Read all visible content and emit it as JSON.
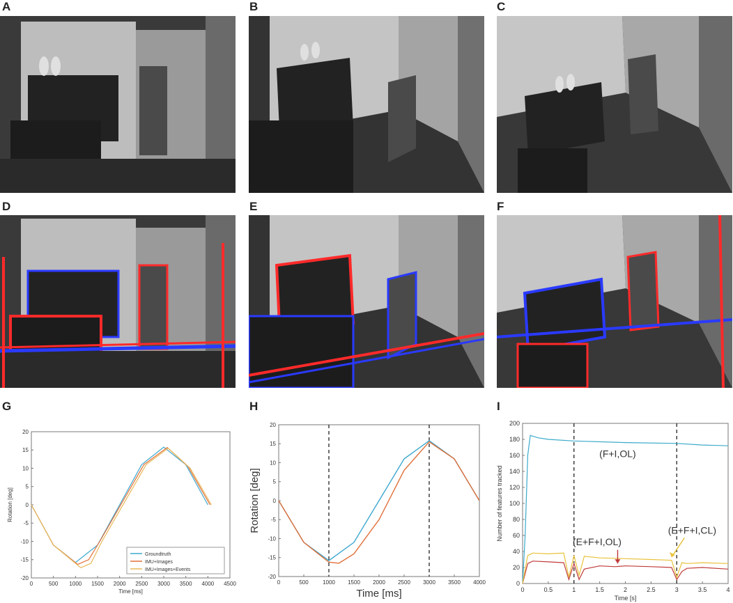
{
  "panel_labels": [
    "A",
    "B",
    "C",
    "D",
    "E",
    "F",
    "G",
    "H",
    "I"
  ],
  "colors": {
    "groundtruth": "#3ea8cf",
    "imu_images": "#e0703a",
    "imu_images_events": "#e8b95a",
    "fi_ol": "#3aaacb",
    "efi_ol": "#c03a3a",
    "efi_cl": "#e8c23a",
    "event_red": "#ff2a2a",
    "event_blue": "#2a3aff"
  },
  "chart_data": [
    {
      "panel": "G",
      "type": "line",
      "xlabel": "Time [ms]",
      "ylabel": "Rotation [deg]",
      "xlim": [
        0,
        4500
      ],
      "ylim": [
        -20,
        20
      ],
      "xticks": [
        0,
        500,
        1000,
        1500,
        2000,
        2500,
        3000,
        3500,
        4000,
        4500
      ],
      "yticks": [
        -20,
        -15,
        -10,
        -5,
        0,
        5,
        10,
        15,
        20
      ],
      "legend_position": "bottom-right",
      "series": [
        {
          "name": "Groundtruth",
          "x": [
            0,
            500,
            1000,
            1500,
            2000,
            2500,
            3000,
            3500,
            4000
          ],
          "y": [
            0,
            -11,
            -15.8,
            -11,
            0,
            11,
            15.8,
            11,
            0
          ]
        },
        {
          "name": "IMU+Images",
          "x": [
            0,
            500,
            1050,
            1300,
            1550,
            2050,
            2550,
            3080,
            3550,
            4050
          ],
          "y": [
            0,
            -11,
            -16.3,
            -15,
            -10,
            0.5,
            11,
            15.7,
            10.5,
            0
          ]
        },
        {
          "name": "IMU+Images+Events",
          "x": [
            0,
            500,
            1120,
            1350,
            1600,
            2100,
            2600,
            3100,
            3600,
            4080
          ],
          "y": [
            0,
            -11,
            -17.2,
            -16,
            -10,
            0.5,
            11,
            15.5,
            10,
            0
          ]
        }
      ]
    },
    {
      "panel": "H",
      "type": "line",
      "xlabel": "Time [ms]",
      "ylabel": "Rotation [deg]",
      "xlim": [
        0,
        4000
      ],
      "ylim": [
        -20,
        20
      ],
      "xticks": [
        0,
        500,
        1000,
        1500,
        2000,
        2500,
        3000,
        3500,
        4000
      ],
      "yticks": [
        -20,
        -15,
        -10,
        -5,
        0,
        5,
        10,
        15,
        20
      ],
      "vlines": [
        1000,
        3000
      ],
      "series": [
        {
          "x": [
            0,
            500,
            1000,
            1500,
            2000,
            2500,
            3000,
            3500,
            4000
          ],
          "y": [
            0,
            -11,
            -15.8,
            -11,
            0,
            11,
            15.8,
            11,
            0
          ]
        },
        {
          "x": [
            0,
            500,
            1000,
            1200,
            1500,
            2000,
            2500,
            3000,
            3500,
            4000
          ],
          "y": [
            0,
            -11,
            -16.2,
            -16.5,
            -14,
            -5,
            8,
            15.5,
            11,
            0
          ]
        }
      ]
    },
    {
      "panel": "I",
      "type": "line",
      "xlabel": "Time [s]",
      "ylabel": "Number of features tracked",
      "xlim": [
        0,
        4
      ],
      "ylim": [
        0,
        200
      ],
      "xticks": [
        0,
        0.5,
        1,
        1.5,
        2,
        2.5,
        3,
        3.5,
        4
      ],
      "xtick_labels": [
        "0",
        "0.5",
        "1",
        "1.5",
        "2",
        "2.5",
        "3",
        "3.5",
        "4"
      ],
      "yticks": [
        0,
        20,
        40,
        60,
        80,
        100,
        120,
        140,
        160,
        180,
        200
      ],
      "vlines": [
        1,
        3
      ],
      "annotations": [
        {
          "text": "(F+I,OL)",
          "x": 1.85,
          "y": 158
        },
        {
          "text": "(E+F+I,OL)",
          "x": 1.45,
          "y": 48
        },
        {
          "text": "(E+F+I,CL)",
          "x": 3.3,
          "y": 62
        }
      ],
      "series": [
        {
          "name": "(F+I,OL)",
          "x": [
            0,
            0.05,
            0.1,
            0.15,
            0.3,
            0.5,
            1,
            2,
            3,
            3.5,
            4
          ],
          "y": [
            0,
            60,
            160,
            185,
            182,
            180,
            178,
            176,
            175,
            173,
            172
          ]
        },
        {
          "name": "(E+F+I,OL)",
          "x": [
            0,
            0.1,
            0.2,
            0.5,
            0.8,
            0.9,
            1.0,
            1.1,
            1.2,
            1.5,
            1.8,
            2.0,
            2.5,
            2.9,
            3.0,
            3.1,
            3.2,
            3.5,
            4
          ],
          "y": [
            0,
            25,
            28,
            27,
            26,
            5,
            25,
            5,
            18,
            22,
            21,
            22,
            21,
            20,
            5,
            15,
            19,
            20,
            18
          ]
        },
        {
          "name": "(E+F+I,CL)",
          "x": [
            0,
            0.1,
            0.2,
            0.5,
            0.8,
            0.9,
            1.0,
            1.1,
            1.2,
            1.5,
            2.0,
            2.5,
            2.9,
            3.0,
            3.1,
            3.2,
            3.5,
            4
          ],
          "y": [
            0,
            35,
            38,
            37,
            38,
            8,
            35,
            10,
            34,
            32,
            31,
            30,
            29,
            8,
            26,
            25,
            26,
            25
          ]
        }
      ]
    }
  ]
}
